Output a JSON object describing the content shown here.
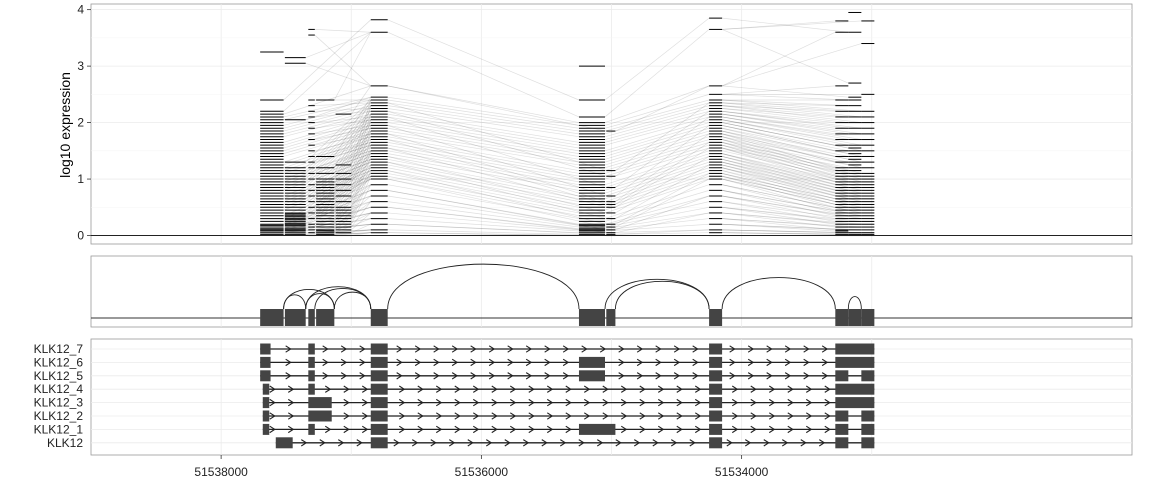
{
  "chart_data": [
    {
      "panel": "expression",
      "type": "line",
      "ylabel": "log10 expression",
      "xlim": [
        51539000,
        51531000
      ],
      "ylim": [
        -0.15,
        4.1
      ],
      "yticks": [
        0,
        1,
        2,
        3,
        4
      ],
      "ytick_labels": [
        "0",
        "1",
        "2",
        "3",
        "4"
      ],
      "grid": true,
      "exon_columns": [
        {
          "start": 51537700,
          "end": 51537520,
          "levels": [
            0,
            0.02,
            0.05,
            0.08,
            0.1,
            0.12,
            0.15,
            0.18,
            0.2,
            0.25,
            0.3,
            0.35,
            0.4,
            0.45,
            0.5,
            0.55,
            0.6,
            0.65,
            0.7,
            0.75,
            0.8,
            0.85,
            0.9,
            0.95,
            1.0,
            1.05,
            1.1,
            1.15,
            1.2,
            1.25,
            1.3,
            1.35,
            1.4,
            1.45,
            1.5,
            1.55,
            1.6,
            1.65,
            1.7,
            1.75,
            1.8,
            1.85,
            1.9,
            1.95,
            2.0,
            2.05,
            2.1,
            2.15,
            2.2,
            2.4,
            3.25
          ]
        },
        {
          "start": 51537510,
          "end": 51537350,
          "levels": [
            0,
            0.02,
            0.05,
            0.08,
            0.1,
            0.12,
            0.15,
            0.18,
            0.2,
            0.22,
            0.25,
            0.28,
            0.3,
            0.33,
            0.35,
            0.38,
            0.4,
            0.45,
            0.5,
            0.55,
            0.6,
            0.65,
            0.7,
            0.75,
            0.8,
            0.85,
            0.9,
            0.95,
            1.0,
            1.05,
            1.1,
            1.15,
            1.2,
            1.3,
            2.05,
            3.05,
            3.15
          ]
        },
        {
          "start": 51537330,
          "end": 51537280,
          "levels": [
            0,
            0.05,
            0.1,
            0.15,
            0.2,
            0.3,
            0.4,
            0.5,
            0.6,
            0.7,
            0.8,
            0.9,
            1.0,
            1.1,
            1.2,
            1.3,
            1.4,
            1.5,
            1.6,
            1.7,
            1.8,
            1.9,
            2.0,
            2.1,
            2.2,
            2.3,
            2.4,
            3.55,
            3.65
          ]
        },
        {
          "start": 51537270,
          "end": 51537130,
          "levels": [
            0,
            0.02,
            0.05,
            0.08,
            0.1,
            0.15,
            0.2,
            0.25,
            0.3,
            0.35,
            0.4,
            0.45,
            0.5,
            0.55,
            0.6,
            0.65,
            0.7,
            0.75,
            0.8,
            0.85,
            0.9,
            0.95,
            1.0,
            1.1,
            1.2,
            1.4,
            2.4
          ]
        },
        {
          "start": 51537120,
          "end": 51537000,
          "levels": [
            0,
            0.05,
            0.1,
            0.15,
            0.2,
            0.25,
            0.3,
            0.35,
            0.4,
            0.45,
            0.5,
            0.6,
            0.7,
            0.8,
            0.9,
            1.0,
            1.1,
            1.25,
            2.15
          ]
        },
        {
          "start": 51536850,
          "end": 51536720,
          "levels": [
            0.05,
            0.1,
            0.2,
            0.3,
            0.4,
            0.5,
            0.6,
            0.7,
            0.8,
            0.9,
            1.0,
            1.05,
            1.1,
            1.15,
            1.2,
            1.25,
            1.3,
            1.35,
            1.4,
            1.45,
            1.5,
            1.55,
            1.6,
            1.65,
            1.7,
            1.75,
            1.8,
            1.85,
            1.9,
            1.95,
            2.0,
            2.05,
            2.1,
            2.15,
            2.2,
            2.25,
            2.3,
            2.35,
            2.4,
            2.45,
            2.65,
            3.6,
            3.82
          ]
        },
        {
          "start": 51535250,
          "end": 51535050,
          "levels": [
            0,
            0.02,
            0.05,
            0.08,
            0.1,
            0.12,
            0.15,
            0.18,
            0.2,
            0.25,
            0.3,
            0.35,
            0.4,
            0.45,
            0.5,
            0.55,
            0.6,
            0.65,
            0.7,
            0.75,
            0.8,
            0.85,
            0.9,
            0.95,
            1.0,
            1.05,
            1.1,
            1.15,
            1.2,
            1.25,
            1.3,
            1.35,
            1.4,
            1.45,
            1.5,
            1.55,
            1.6,
            1.65,
            1.7,
            1.75,
            1.8,
            1.85,
            1.9,
            1.95,
            2.0,
            2.1,
            2.4,
            3.0
          ]
        },
        {
          "start": 51535040,
          "end": 51534970,
          "levels": [
            0,
            0.02,
            0.05,
            0.1,
            0.15,
            0.2,
            0.3,
            0.4,
            0.5,
            0.55,
            0.6,
            0.7,
            0.85,
            1.05,
            1.15,
            1.85
          ]
        },
        {
          "start": 51534250,
          "end": 51534150,
          "levels": [
            0,
            0.05,
            0.1,
            0.2,
            0.3,
            0.4,
            0.5,
            0.6,
            0.7,
            0.8,
            0.9,
            1.0,
            1.05,
            1.1,
            1.15,
            1.2,
            1.25,
            1.3,
            1.35,
            1.4,
            1.45,
            1.5,
            1.55,
            1.6,
            1.65,
            1.7,
            1.75,
            1.8,
            1.85,
            1.9,
            1.95,
            2.0,
            2.05,
            2.1,
            2.15,
            2.2,
            2.25,
            2.3,
            2.35,
            2.4,
            2.5,
            2.65,
            3.65,
            3.85
          ]
        },
        {
          "start": 51533280,
          "end": 51533180,
          "levels": [
            0,
            0.02,
            0.05,
            0.08,
            0.1,
            0.15,
            0.2,
            0.25,
            0.3,
            0.35,
            0.4,
            0.45,
            0.5,
            0.55,
            0.6,
            0.65,
            0.7,
            0.75,
            0.8,
            0.85,
            0.9,
            0.95,
            1.0,
            1.05,
            1.1,
            1.15,
            1.2,
            1.3,
            1.4,
            1.5,
            1.6,
            1.7,
            1.8,
            1.9,
            2.0,
            2.1,
            2.2,
            2.3,
            2.4,
            2.65,
            3.6,
            3.8
          ]
        },
        {
          "start": 51533180,
          "end": 51533080,
          "levels": [
            0,
            0.02,
            0.05,
            0.1,
            0.15,
            0.2,
            0.25,
            0.3,
            0.35,
            0.4,
            0.45,
            0.5,
            0.55,
            0.6,
            0.65,
            0.7,
            0.75,
            0.8,
            0.85,
            0.9,
            0.95,
            1.0,
            1.05,
            1.1,
            1.15,
            1.2,
            1.25,
            1.3,
            1.35,
            1.4,
            1.45,
            1.5,
            1.55,
            1.6,
            1.7,
            1.8,
            1.9,
            2.0,
            2.1,
            2.2,
            2.3,
            2.4,
            2.45,
            2.7,
            3.6,
            3.95
          ]
        },
        {
          "start": 51533080,
          "end": 51532980,
          "levels": [
            0,
            0.02,
            0.05,
            0.1,
            0.15,
            0.2,
            0.25,
            0.3,
            0.35,
            0.4,
            0.45,
            0.5,
            0.55,
            0.6,
            0.65,
            0.7,
            0.75,
            0.8,
            0.85,
            0.9,
            0.95,
            1.0,
            1.05,
            1.1,
            1.2,
            1.3,
            1.4,
            1.5,
            1.6,
            1.7,
            1.8,
            1.9,
            2.0,
            2.1,
            2.2,
            2.5,
            3.4,
            3.8
          ]
        }
      ],
      "connection_pairs": [
        [
          0,
          5
        ],
        [
          1,
          5
        ],
        [
          2,
          5
        ],
        [
          3,
          5
        ],
        [
          4,
          5
        ],
        [
          5,
          6
        ],
        [
          5,
          7
        ],
        [
          6,
          8
        ],
        [
          7,
          8
        ],
        [
          8,
          9
        ],
        [
          8,
          10
        ],
        [
          8,
          11
        ]
      ]
    },
    {
      "panel": "junctions",
      "type": "arc",
      "exons": [
        [
          51537700,
          51537520
        ],
        [
          51537510,
          51537350
        ],
        [
          51537330,
          51537280
        ],
        [
          51537270,
          51537130
        ],
        [
          51536850,
          51536720
        ],
        [
          51535250,
          51535050
        ],
        [
          51535040,
          51534970
        ],
        [
          51534250,
          51534150
        ],
        [
          51533280,
          51533180
        ],
        [
          51533180,
          51533080
        ],
        [
          51533080,
          51532980
        ]
      ],
      "junctions": [
        [
          51537520,
          51537350
        ],
        [
          51537520,
          51537130
        ],
        [
          51537350,
          51537130
        ],
        [
          51537350,
          51536850
        ],
        [
          51537280,
          51536850
        ],
        [
          51537130,
          51536850
        ],
        [
          51536720,
          51535250
        ],
        [
          51535050,
          51534250
        ],
        [
          51534970,
          51534250
        ],
        [
          51534150,
          51533280
        ],
        [
          51533180,
          51533080
        ]
      ]
    },
    {
      "panel": "transcripts",
      "type": "gene-structure",
      "xlabel": "",
      "xticks": [
        51538000,
        51536000,
        51534000
      ],
      "xtick_labels": [
        "51538000",
        "51536000",
        "51534000"
      ],
      "transcripts": [
        {
          "name": "KLK12_7",
          "span": [
            51537700,
            51532980
          ],
          "exons": [
            [
              51537700,
              51537620
            ],
            [
              51537330,
              51537280
            ],
            [
              51536850,
              51536720
            ],
            [
              51534250,
              51534150
            ],
            [
              51533280,
              51532980
            ]
          ]
        },
        {
          "name": "KLK12_6",
          "span": [
            51537700,
            51532980
          ],
          "exons": [
            [
              51537700,
              51537620
            ],
            [
              51537330,
              51537280
            ],
            [
              51536850,
              51536720
            ],
            [
              51535250,
              51535050
            ],
            [
              51534250,
              51534150
            ],
            [
              51533280,
              51532980
            ]
          ]
        },
        {
          "name": "KLK12_5",
          "span": [
            51537700,
            51532980
          ],
          "exons": [
            [
              51537700,
              51537620
            ],
            [
              51537330,
              51537280
            ],
            [
              51536850,
              51536720
            ],
            [
              51535250,
              51535050
            ],
            [
              51534250,
              51534150
            ],
            [
              51533280,
              51533180
            ],
            [
              51533080,
              51532980
            ]
          ]
        },
        {
          "name": "KLK12_4",
          "span": [
            51537680,
            51532980
          ],
          "exons": [
            [
              51537680,
              51537630
            ],
            [
              51537330,
              51537280
            ],
            [
              51536850,
              51536720
            ],
            [
              51534250,
              51534150
            ],
            [
              51533280,
              51532980
            ]
          ]
        },
        {
          "name": "KLK12_3",
          "span": [
            51537680,
            51532980
          ],
          "exons": [
            [
              51537680,
              51537630
            ],
            [
              51537330,
              51537150
            ],
            [
              51536850,
              51536720
            ],
            [
              51534250,
              51534150
            ],
            [
              51533280,
              51532980
            ]
          ]
        },
        {
          "name": "KLK12_2",
          "span": [
            51537680,
            51532980
          ],
          "exons": [
            [
              51537680,
              51537630
            ],
            [
              51537330,
              51537150
            ],
            [
              51536850,
              51536720
            ],
            [
              51534250,
              51534150
            ],
            [
              51533280,
              51533180
            ],
            [
              51533080,
              51532980
            ]
          ]
        },
        {
          "name": "KLK12_1",
          "span": [
            51537680,
            51532980
          ],
          "exons": [
            [
              51537680,
              51537630
            ],
            [
              51537330,
              51537280
            ],
            [
              51536850,
              51536720
            ],
            [
              51535250,
              51534970
            ],
            [
              51534250,
              51534150
            ],
            [
              51533280,
              51533180
            ],
            [
              51533080,
              51532980
            ]
          ]
        },
        {
          "name": "KLK12",
          "span": [
            51537580,
            51532980
          ],
          "exons": [
            [
              51537580,
              51537450
            ],
            [
              51536850,
              51536720
            ],
            [
              51534250,
              51534150
            ],
            [
              51533280,
              51533180
            ],
            [
              51533080,
              51532980
            ]
          ]
        }
      ]
    }
  ]
}
